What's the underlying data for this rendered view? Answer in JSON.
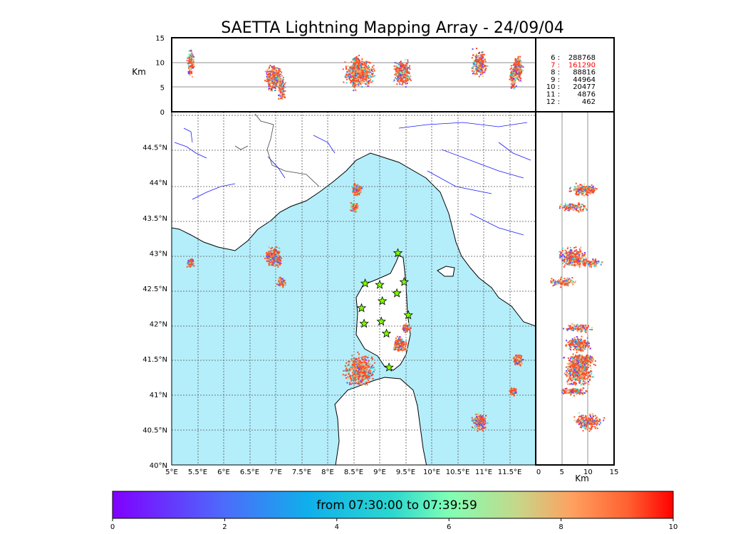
{
  "chart_data": {
    "type": "scatter",
    "title": "SAETTA Lightning Mapping Array - 24/09/04",
    "colors": {
      "sea": "#b4eefa",
      "land": "#ffffff",
      "coast": "#000000",
      "rivers": "#1a1aff",
      "borders": "#444444",
      "station_fill": "#7fff00",
      "highlight": "#ff0000"
    },
    "grid": true,
    "map": {
      "lon_range": [
        5.0,
        12.0
      ],
      "lat_range": [
        40.0,
        45.0
      ],
      "lon_ticks": [
        "5°E",
        "5.5°E",
        "6°E",
        "6.5°E",
        "7°E",
        "7.5°E",
        "8°E",
        "8.5°E",
        "9°E",
        "9.5°E",
        "10°E",
        "10.5°E",
        "11°E",
        "11.5°E"
      ],
      "lat_ticks": [
        "40°N",
        "40.5°N",
        "41°N",
        "41.5°N",
        "42°N",
        "42.5°N",
        "43°N",
        "43.5°N",
        "44°N",
        "44.5°N"
      ]
    },
    "top_panel": {
      "ylabel": "Km",
      "y_range": [
        0,
        15
      ],
      "y_ticks": [
        "0",
        "5",
        "10",
        "15"
      ]
    },
    "right_panel": {
      "xlabel": "Km",
      "x_range": [
        0,
        15
      ],
      "x_ticks": [
        "0",
        "5",
        "10",
        "15"
      ]
    },
    "counts": [
      {
        "label": "6 :",
        "value": "288768",
        "highlight": false
      },
      {
        "label": "7 :",
        "value": "161290",
        "highlight": true
      },
      {
        "label": "8 :",
        "value": "88816",
        "highlight": false
      },
      {
        "label": "9 :",
        "value": "44964",
        "highlight": false
      },
      {
        "label": "10 :",
        "value": "20477",
        "highlight": false
      },
      {
        "label": "11 :",
        "value": "4876",
        "highlight": false
      },
      {
        "label": "12 :",
        "value": "462",
        "highlight": false
      }
    ],
    "colorbar": {
      "label": "from 07:30:00 to 07:39:59",
      "range": [
        0,
        10
      ],
      "ticks": [
        "0",
        "2",
        "4",
        "6",
        "8",
        "10"
      ]
    },
    "stations": [
      {
        "lon": 9.35,
        "lat": 43.0
      },
      {
        "lon": 8.72,
        "lat": 42.57
      },
      {
        "lon": 9.0,
        "lat": 42.55
      },
      {
        "lon": 9.47,
        "lat": 42.59
      },
      {
        "lon": 9.33,
        "lat": 42.43
      },
      {
        "lon": 9.05,
        "lat": 42.32
      },
      {
        "lon": 8.65,
        "lat": 42.22
      },
      {
        "lon": 9.03,
        "lat": 42.03
      },
      {
        "lon": 8.7,
        "lat": 42.0
      },
      {
        "lon": 9.55,
        "lat": 42.12
      },
      {
        "lon": 9.13,
        "lat": 41.86
      },
      {
        "lon": 9.18,
        "lat": 41.38
      }
    ],
    "clusters": [
      {
        "lon": 5.35,
        "lat": 42.87,
        "alt": 10,
        "extent": 0.08,
        "weight": 1
      },
      {
        "lon": 6.95,
        "lat": 42.95,
        "alt": 7,
        "extent": 0.2,
        "weight": 3
      },
      {
        "lon": 7.1,
        "lat": 42.6,
        "alt": 5,
        "extent": 0.1,
        "weight": 1
      },
      {
        "lon": 8.55,
        "lat": 43.91,
        "alt": 9,
        "extent": 0.12,
        "weight": 2
      },
      {
        "lon": 8.5,
        "lat": 43.66,
        "alt": 7,
        "extent": 0.1,
        "weight": 1
      },
      {
        "lon": 8.6,
        "lat": 41.35,
        "alt": 8,
        "extent": 0.35,
        "weight": 5
      },
      {
        "lon": 9.38,
        "lat": 41.72,
        "alt": 8,
        "extent": 0.15,
        "weight": 2
      },
      {
        "lon": 9.5,
        "lat": 41.95,
        "alt": 8,
        "extent": 0.1,
        "weight": 1
      },
      {
        "lon": 10.9,
        "lat": 40.62,
        "alt": 10,
        "extent": 0.18,
        "weight": 2
      },
      {
        "lon": 11.65,
        "lat": 41.5,
        "alt": 9,
        "extent": 0.12,
        "weight": 2
      },
      {
        "lon": 11.55,
        "lat": 41.05,
        "alt": 7,
        "extent": 0.08,
        "weight": 1
      }
    ]
  }
}
